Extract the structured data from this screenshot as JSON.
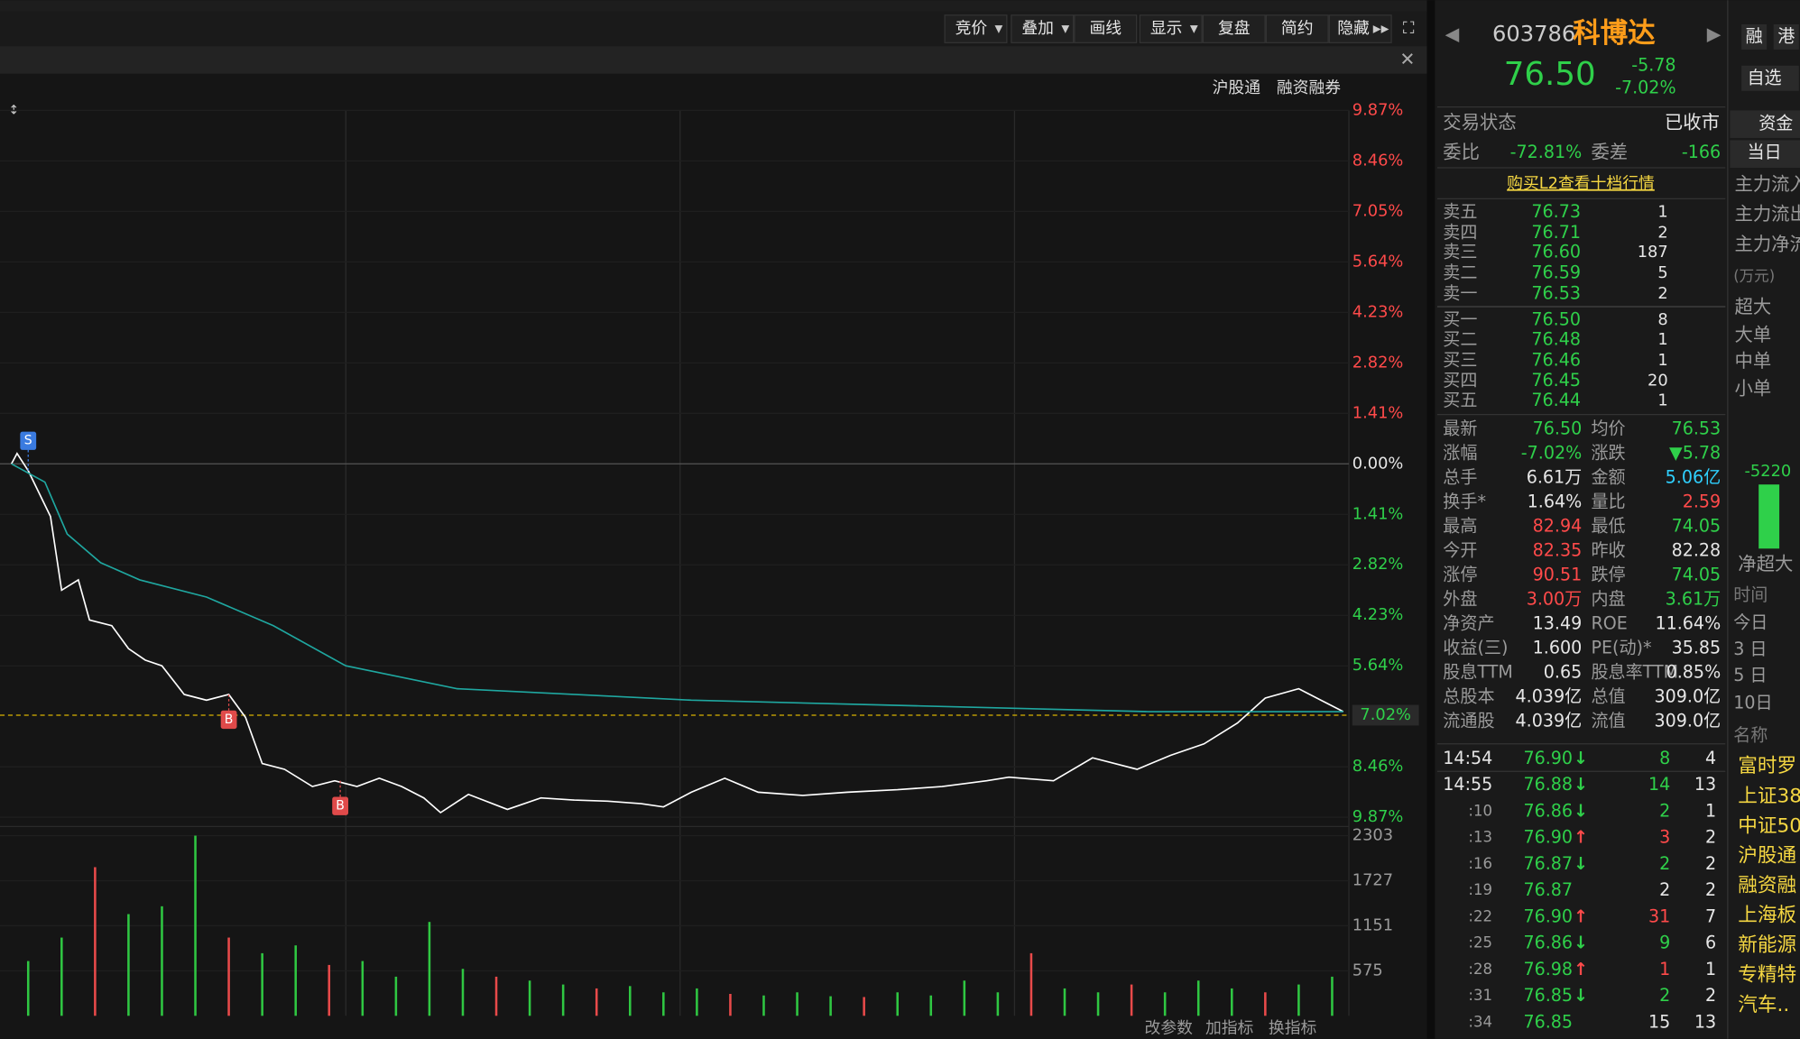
{
  "toolbar": [
    "竞价",
    "叠加",
    "画线",
    "显示",
    "复盘",
    "简约",
    "隐藏"
  ],
  "chart_data": {
    "type": "line",
    "badges": [
      "沪股通",
      "融资融券"
    ],
    "xlim": [
      0,
      240
    ],
    "xgrid": [
      60,
      120,
      180
    ],
    "ylim": [
      -9.87,
      9.87
    ],
    "yticks": [
      {
        "value": 9.87,
        "label": "9.87%"
      },
      {
        "value": 8.46,
        "label": "8.46%"
      },
      {
        "value": 7.05,
        "label": "7.05%"
      },
      {
        "value": 5.64,
        "label": "5.64%"
      },
      {
        "value": 4.23,
        "label": "4.23%"
      },
      {
        "value": 2.82,
        "label": "2.82%"
      },
      {
        "value": 1.41,
        "label": "1.41%"
      },
      {
        "value": 0,
        "label": "0.00%"
      },
      {
        "value": -1.41,
        "label": "1.41%"
      },
      {
        "value": -2.82,
        "label": "2.82%"
      },
      {
        "value": -4.23,
        "label": "4.23%"
      },
      {
        "value": -5.64,
        "label": "5.64%"
      },
      {
        "value": -8.46,
        "label": "8.46%"
      },
      {
        "value": -9.87,
        "label": "9.87%"
      }
    ],
    "last": {
      "value": -7.02,
      "label": "7.02%"
    },
    "series": [
      {
        "color": "#ffffff",
        "x": [
          0,
          1,
          3,
          7,
          9,
          12,
          14,
          18,
          21,
          24,
          27,
          31,
          35,
          39,
          42,
          45,
          49,
          54,
          58,
          62,
          66,
          70,
          74,
          77,
          82,
          89,
          95,
          101,
          107,
          113,
          117,
          122,
          128,
          134,
          142,
          150,
          159,
          167,
          175,
          179,
          187,
          194,
          202,
          208,
          214,
          220,
          225,
          231,
          235,
          239
        ],
        "values": [
          0,
          0.29,
          -0.19,
          -1.47,
          -3.53,
          -3.24,
          -4.36,
          -4.52,
          -5.16,
          -5.48,
          -5.64,
          -6.44,
          -6.6,
          -6.44,
          -7.08,
          -8.37,
          -8.53,
          -9.01,
          -8.85,
          -9.01,
          -8.78,
          -9.01,
          -9.33,
          -9.74,
          -9.23,
          -9.65,
          -9.33,
          -9.39,
          -9.42,
          -9.49,
          -9.58,
          -9.17,
          -8.78,
          -9.17,
          -9.26,
          -9.17,
          -9.1,
          -9.01,
          -8.85,
          -8.75,
          -8.85,
          -8.21,
          -8.53,
          -8.14,
          -7.82,
          -7.24,
          -6.54,
          -6.28,
          -6.6,
          -6.92
        ]
      },
      {
        "color": "#1fa7a0",
        "x": [
          0,
          6,
          10,
          16,
          23,
          35,
          47,
          60,
          80,
          101,
          122,
          163,
          204,
          239
        ],
        "values": [
          0,
          -0.51,
          -1.96,
          -2.76,
          -3.24,
          -3.72,
          -4.52,
          -5.64,
          -6.28,
          -6.44,
          -6.6,
          -6.76,
          -6.92,
          -6.92
        ]
      }
    ],
    "markers": [
      {
        "label": "S",
        "x": 3
      },
      {
        "label": "B",
        "x": 39
      },
      {
        "label": "B",
        "x": 59
      }
    ],
    "volume": {
      "type": "bar",
      "ylim": [
        0,
        2303
      ],
      "yticks": [
        575,
        1151,
        1727,
        2303
      ],
      "x": [
        3,
        9,
        15,
        21,
        27,
        33,
        39,
        45,
        51,
        57,
        63,
        69,
        75,
        81,
        87,
        93,
        99,
        105,
        111,
        117,
        123,
        129,
        135,
        141,
        147,
        153,
        159,
        165,
        171,
        177,
        183,
        189,
        195,
        201,
        207,
        213,
        219,
        225,
        231,
        237
      ],
      "series": [
        {
          "color": "#e84a4a",
          "values": [
            null,
            null,
            1900,
            null,
            null,
            null,
            1000,
            null,
            null,
            650,
            null,
            null,
            null,
            null,
            500,
            null,
            null,
            350,
            null,
            null,
            null,
            280,
            null,
            null,
            null,
            240,
            null,
            null,
            null,
            null,
            800,
            null,
            null,
            400,
            null,
            null,
            null,
            300,
            null,
            null
          ]
        },
        {
          "color": "#2fc742",
          "values": [
            700,
            1000,
            null,
            1300,
            1400,
            2303,
            null,
            800,
            900,
            null,
            700,
            500,
            1200,
            600,
            null,
            450,
            400,
            null,
            380,
            300,
            350,
            null,
            260,
            300,
            250,
            null,
            300,
            260,
            450,
            300,
            null,
            350,
            300,
            null,
            300,
            450,
            350,
            null,
            400,
            500
          ]
        }
      ]
    }
  },
  "footer": [
    "改参数",
    "加指标",
    "换指标"
  ],
  "quote": {
    "code": "603786",
    "name": "科博达",
    "price": "76.50",
    "change": "-5.78",
    "pct": "-7.02%",
    "buttons": [
      "融",
      "港",
      "自选"
    ]
  },
  "status": [
    "交易状态",
    "已收市"
  ],
  "ratio": [
    "委比",
    "-72.81%",
    "委差",
    "-166"
  ],
  "l2_link": "购买L2查看十档行情",
  "asks": [
    [
      "卖五",
      "76.73",
      "1"
    ],
    [
      "卖四",
      "76.71",
      "2"
    ],
    [
      "卖三",
      "76.60",
      "187"
    ],
    [
      "卖二",
      "76.59",
      "5"
    ],
    [
      "卖一",
      "76.53",
      "2"
    ]
  ],
  "bids": [
    [
      "买一",
      "76.50",
      "8"
    ],
    [
      "买二",
      "76.48",
      "1"
    ],
    [
      "买三",
      "76.46",
      "1"
    ],
    [
      "买四",
      "76.45",
      "20"
    ],
    [
      "买五",
      "76.44",
      "1"
    ]
  ],
  "stats": [
    [
      "最新",
      "76.50",
      "均价",
      "76.53"
    ],
    [
      "涨幅",
      "-7.02%",
      "涨跌",
      "▼5.78"
    ],
    [
      "总手",
      "6.61万",
      "金额",
      "5.06亿"
    ],
    [
      "换手*",
      "1.64%",
      "量比",
      "2.59"
    ],
    [
      "最高",
      "82.94",
      "最低",
      "74.05"
    ],
    [
      "今开",
      "82.35",
      "昨收",
      "82.28"
    ],
    [
      "涨停",
      "90.51",
      "跌停",
      "74.05"
    ],
    [
      "外盘",
      "3.00万",
      "内盘",
      "3.61万"
    ],
    [
      "净资产",
      "13.49",
      "ROE",
      "11.64%"
    ],
    [
      "收益(三)",
      "1.600",
      "PE(动)*",
      "35.85"
    ],
    [
      "股息TTM",
      "0.65",
      "股息率TTM",
      "0.85%"
    ],
    [
      "总股本",
      "4.039亿",
      "总值",
      "309.0亿"
    ],
    [
      "流通股",
      "4.039亿",
      "流值",
      "309.0亿"
    ]
  ],
  "ticks": [
    {
      "time": "14:54",
      "price": "76.90",
      "dir": "down",
      "vol": "8",
      "count": "4"
    },
    {
      "time": "14:55",
      "price": "76.88",
      "dir": "down",
      "vol": "14",
      "count": "13"
    },
    {
      "time": ":10",
      "price": "76.86",
      "dir": "down",
      "vol": "2",
      "count": "1"
    },
    {
      "time": ":13",
      "price": "76.90",
      "dir": "up",
      "vol": "3",
      "count": "2"
    },
    {
      "time": ":16",
      "price": "76.87",
      "dir": "down",
      "vol": "2",
      "count": "2"
    },
    {
      "time": ":19",
      "price": "76.87",
      "dir": "",
      "vol": "2",
      "count": "2"
    },
    {
      "time": ":22",
      "price": "76.90",
      "dir": "up",
      "vol": "31",
      "count": "7"
    },
    {
      "time": ":25",
      "price": "76.86",
      "dir": "down",
      "vol": "9",
      "count": "6"
    },
    {
      "time": ":28",
      "price": "76.98",
      "dir": "up",
      "vol": "1",
      "count": "1"
    },
    {
      "time": ":31",
      "price": "76.85",
      "dir": "down",
      "vol": "2",
      "count": "2"
    },
    {
      "time": ":34",
      "price": "76.85",
      "dir": "",
      "vol": "15",
      "count": "13"
    }
  ],
  "fund": {
    "tabs": [
      "资金",
      "当日"
    ],
    "rows": [
      "主力流入",
      "主力流出",
      "主力净流"
    ],
    "unit": "(万元)",
    "sizes": [
      "超大",
      "大单",
      "中单",
      "小单"
    ],
    "bar_value": -5220,
    "bar_label": "净超大",
    "periods": [
      "时间",
      "今日",
      "3 日",
      "5 日",
      "10日"
    ],
    "name_header": "名称",
    "sectors": [
      "富时罗",
      "上证38",
      "中证50",
      "沪股通",
      "融资融",
      "上海板",
      "新能源",
      "专精特",
      "汽车.."
    ]
  }
}
